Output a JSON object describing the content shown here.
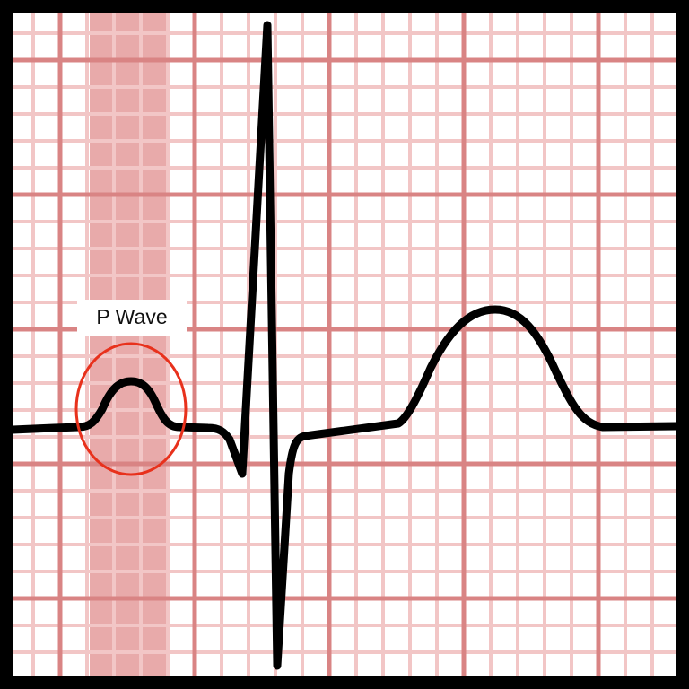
{
  "diagram": {
    "annotation": {
      "label": "P Wave",
      "circle_color": "#e8311c"
    },
    "colors": {
      "paper": "#ffffff",
      "minor_grid": "#f2c6c6",
      "major_grid": "#d98484",
      "highlight_band": "#e8aaaa",
      "trace": "#000000",
      "border": "#000000"
    }
  }
}
